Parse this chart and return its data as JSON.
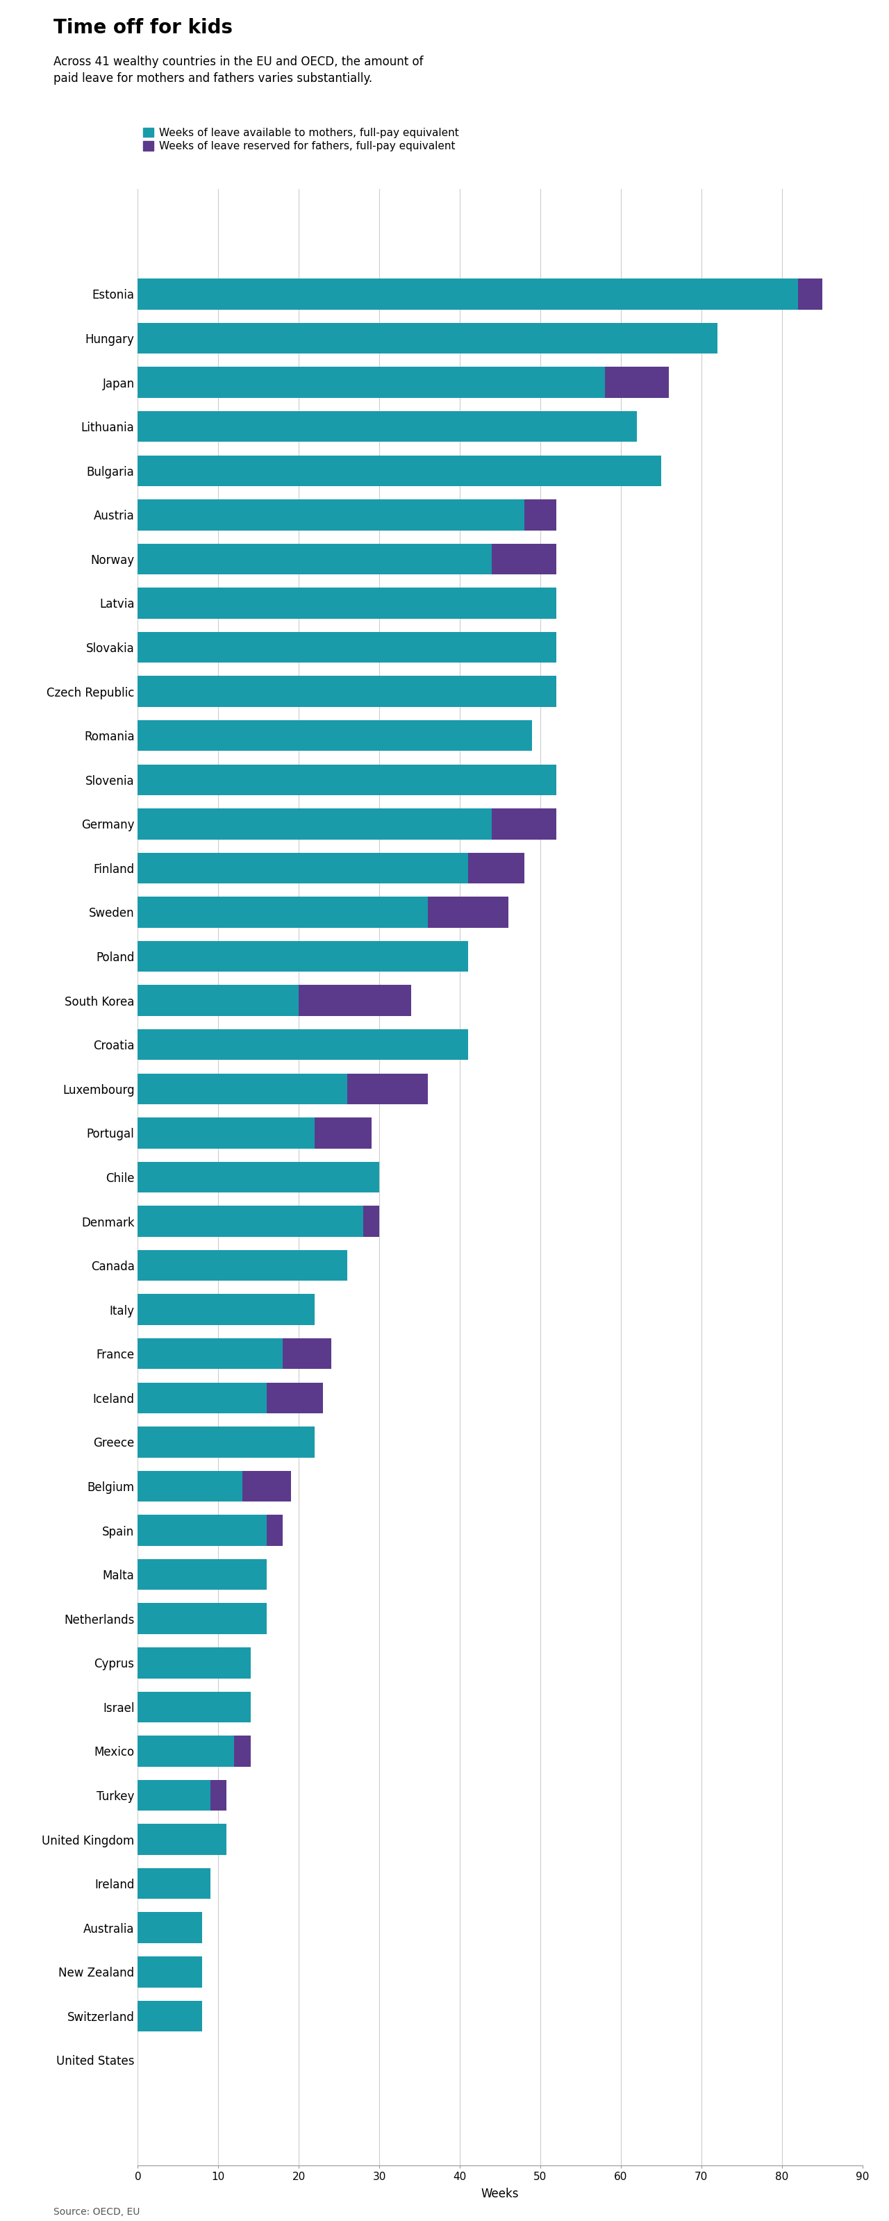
{
  "title": "Time off for kids",
  "subtitle": "Across 41 wealthy countries in the EU and OECD, the amount of\npaid leave for mothers and fathers varies substantially.",
  "legend_mothers": "Weeks of leave available to mothers, full-pay equivalent",
  "legend_fathers": "Weeks of leave reserved for fathers, full-pay equivalent",
  "source": "Source: OECD, EU",
  "xlabel": "Weeks",
  "color_mothers": "#1a9baa",
  "color_fathers": "#5b3a8c",
  "xlim": [
    0,
    90
  ],
  "xticks": [
    0,
    10,
    20,
    30,
    40,
    50,
    60,
    70,
    80,
    90
  ],
  "countries": [
    "Estonia",
    "Hungary",
    "Japan",
    "Lithuania",
    "Bulgaria",
    "Austria",
    "Norway",
    "Latvia",
    "Slovakia",
    "Czech Republic",
    "Romania",
    "Slovenia",
    "Germany",
    "Finland",
    "Sweden",
    "Poland",
    "South Korea",
    "Croatia",
    "Luxembourg",
    "Portugal",
    "Chile",
    "Denmark",
    "Canada",
    "Italy",
    "France",
    "Iceland",
    "Greece",
    "Belgium",
    "Spain",
    "Malta",
    "Netherlands",
    "Cyprus",
    "Israel",
    "Mexico",
    "Turkey",
    "United Kingdom",
    "Ireland",
    "Australia",
    "New Zealand",
    "Switzerland",
    "United States"
  ],
  "mothers": [
    82,
    72,
    58,
    62,
    65,
    48,
    44,
    52,
    52,
    52,
    49,
    52,
    44,
    41,
    36,
    41,
    20,
    41,
    26,
    22,
    30,
    28,
    26,
    22,
    18,
    16,
    22,
    13,
    16,
    16,
    16,
    14,
    14,
    12,
    9,
    11,
    9,
    8,
    8,
    8,
    0
  ],
  "fathers": [
    3,
    0,
    8,
    0,
    0,
    4,
    8,
    0,
    0,
    0,
    0,
    0,
    8,
    7,
    10,
    0,
    14,
    0,
    10,
    7,
    0,
    2,
    0,
    0,
    6,
    7,
    0,
    6,
    2,
    0,
    0,
    0,
    0,
    2,
    2,
    0,
    0,
    0,
    0,
    0,
    0
  ],
  "title_fontsize": 20,
  "subtitle_fontsize": 12,
  "label_fontsize": 12,
  "tick_fontsize": 11,
  "legend_fontsize": 11,
  "source_fontsize": 10,
  "bar_height": 0.7,
  "background_color": "#ffffff"
}
